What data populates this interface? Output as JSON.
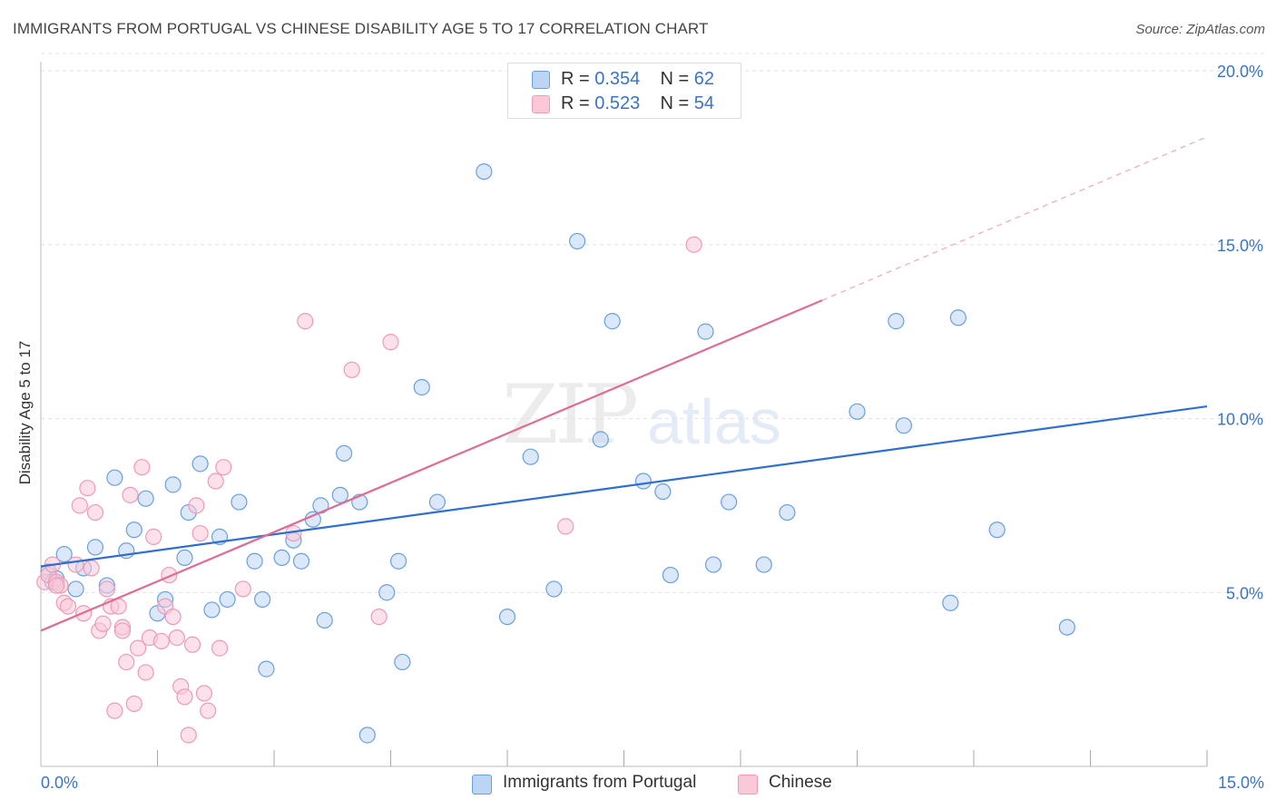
{
  "title": "IMMIGRANTS FROM PORTUGAL VS CHINESE DISABILITY AGE 5 TO 17 CORRELATION CHART",
  "source": "Source: ZipAtlas.com",
  "watermark": {
    "zip": "ZIP",
    "atlas": "atlas"
  },
  "legend_stats": [
    {
      "r_label": "R = ",
      "r_value": "0.354",
      "n_label": "N = ",
      "n_value": "62",
      "color": "#a9c8f2"
    },
    {
      "r_label": "R = ",
      "r_value": "0.523",
      "n_label": "N = ",
      "n_value": "54",
      "color": "#f7b9cb"
    }
  ],
  "chart_data": {
    "type": "scatter",
    "title": "IMMIGRANTS FROM PORTUGAL VS CHINESE DISABILITY AGE 5 TO 17 CORRELATION CHART",
    "xlabel": "",
    "ylabel": "Disability Age 5 to 17",
    "xlim": [
      0,
      15
    ],
    "ylim": [
      0,
      20
    ],
    "x_tick_labels": [
      "0.0%",
      "15.0%"
    ],
    "y_tick_values": [
      5,
      10,
      15,
      20
    ],
    "y_tick_labels": [
      "5.0%",
      "10.0%",
      "15.0%",
      "20.0%"
    ],
    "grid": true,
    "legend_position": "bottom",
    "series": [
      {
        "name": "Immigrants from Portugal",
        "color": "#6a9fe0",
        "fill": "#bcd5f5",
        "trend": {
          "x": [
            0,
            15
          ],
          "y": [
            5.75,
            10.35
          ],
          "color": "#2f6fcf"
        },
        "points": [
          [
            0.1,
            5.6
          ],
          [
            0.15,
            5.3
          ],
          [
            0.2,
            5.4
          ],
          [
            0.3,
            6.1
          ],
          [
            0.45,
            5.1
          ],
          [
            0.55,
            5.7
          ],
          [
            0.7,
            6.3
          ],
          [
            0.85,
            5.2
          ],
          [
            0.95,
            8.3
          ],
          [
            1.1,
            6.2
          ],
          [
            1.2,
            6.8
          ],
          [
            1.35,
            7.7
          ],
          [
            1.5,
            4.4
          ],
          [
            1.6,
            4.8
          ],
          [
            1.7,
            8.1
          ],
          [
            1.85,
            6.0
          ],
          [
            1.9,
            7.3
          ],
          [
            2.05,
            8.7
          ],
          [
            2.2,
            4.5
          ],
          [
            2.3,
            6.6
          ],
          [
            2.4,
            4.8
          ],
          [
            2.55,
            7.6
          ],
          [
            2.75,
            5.9
          ],
          [
            2.85,
            4.8
          ],
          [
            2.9,
            2.8
          ],
          [
            3.1,
            6.0
          ],
          [
            3.25,
            6.5
          ],
          [
            3.35,
            5.9
          ],
          [
            3.5,
            7.1
          ],
          [
            3.6,
            7.5
          ],
          [
            3.65,
            4.2
          ],
          [
            3.85,
            7.8
          ],
          [
            3.9,
            9.0
          ],
          [
            4.1,
            7.6
          ],
          [
            4.2,
            0.9
          ],
          [
            4.45,
            5.0
          ],
          [
            4.6,
            5.9
          ],
          [
            4.65,
            3.0
          ],
          [
            4.9,
            10.9
          ],
          [
            5.1,
            7.6
          ],
          [
            5.7,
            17.1
          ],
          [
            6.0,
            4.3
          ],
          [
            6.3,
            8.9
          ],
          [
            6.6,
            5.1
          ],
          [
            6.9,
            15.1
          ],
          [
            7.2,
            9.4
          ],
          [
            7.35,
            12.8
          ],
          [
            7.75,
            8.2
          ],
          [
            8.0,
            7.9
          ],
          [
            8.1,
            5.5
          ],
          [
            8.55,
            12.5
          ],
          [
            8.65,
            5.8
          ],
          [
            8.85,
            7.6
          ],
          [
            9.3,
            5.8
          ],
          [
            9.6,
            7.3
          ],
          [
            10.5,
            10.2
          ],
          [
            11.0,
            12.8
          ],
          [
            11.1,
            9.8
          ],
          [
            11.7,
            4.7
          ],
          [
            11.8,
            12.9
          ],
          [
            12.3,
            6.8
          ],
          [
            13.2,
            4.0
          ]
        ]
      },
      {
        "name": "Chinese",
        "color": "#ee9ab4",
        "fill": "#f9c9d8",
        "trend": {
          "x": [
            0,
            10.05
          ],
          "y": [
            3.9,
            13.4
          ],
          "dashed_to": [
            15,
            18.1
          ],
          "color": "#e06b94"
        },
        "points": [
          [
            0.05,
            5.3
          ],
          [
            0.1,
            5.5
          ],
          [
            0.15,
            5.8
          ],
          [
            0.2,
            5.3
          ],
          [
            0.25,
            5.2
          ],
          [
            0.3,
            4.7
          ],
          [
            0.35,
            4.6
          ],
          [
            0.45,
            5.8
          ],
          [
            0.5,
            7.5
          ],
          [
            0.55,
            4.4
          ],
          [
            0.6,
            8.0
          ],
          [
            0.65,
            5.7
          ],
          [
            0.7,
            7.3
          ],
          [
            0.75,
            3.9
          ],
          [
            0.8,
            4.1
          ],
          [
            0.85,
            5.1
          ],
          [
            0.9,
            4.6
          ],
          [
            0.95,
            1.6
          ],
          [
            1.0,
            4.6
          ],
          [
            1.05,
            4.0
          ],
          [
            1.1,
            3.0
          ],
          [
            1.15,
            7.8
          ],
          [
            1.2,
            1.8
          ],
          [
            1.25,
            3.4
          ],
          [
            1.3,
            8.6
          ],
          [
            1.35,
            2.7
          ],
          [
            1.4,
            3.7
          ],
          [
            1.45,
            6.6
          ],
          [
            1.55,
            3.6
          ],
          [
            1.6,
            4.6
          ],
          [
            1.65,
            5.5
          ],
          [
            1.7,
            4.3
          ],
          [
            1.75,
            3.7
          ],
          [
            1.8,
            2.3
          ],
          [
            1.85,
            2.0
          ],
          [
            1.9,
            0.9
          ],
          [
            1.95,
            3.5
          ],
          [
            2.0,
            7.5
          ],
          [
            2.05,
            6.7
          ],
          [
            2.1,
            2.1
          ],
          [
            2.15,
            1.6
          ],
          [
            2.25,
            8.2
          ],
          [
            2.3,
            3.4
          ],
          [
            2.35,
            8.6
          ],
          [
            2.6,
            5.1
          ],
          [
            3.25,
            6.7
          ],
          [
            3.4,
            12.8
          ],
          [
            4.0,
            11.4
          ],
          [
            4.35,
            4.3
          ],
          [
            4.5,
            12.2
          ],
          [
            6.75,
            6.9
          ],
          [
            8.4,
            15.0
          ],
          [
            0.2,
            5.2
          ],
          [
            1.05,
            3.9
          ]
        ]
      }
    ]
  },
  "bottom_legend": [
    {
      "label": "Immigrants from Portugal",
      "color": "#bcd5f5",
      "border": "#6a9fe0"
    },
    {
      "label": "Chinese",
      "color": "#f9c9d8",
      "border": "#ee9ab4"
    }
  ]
}
